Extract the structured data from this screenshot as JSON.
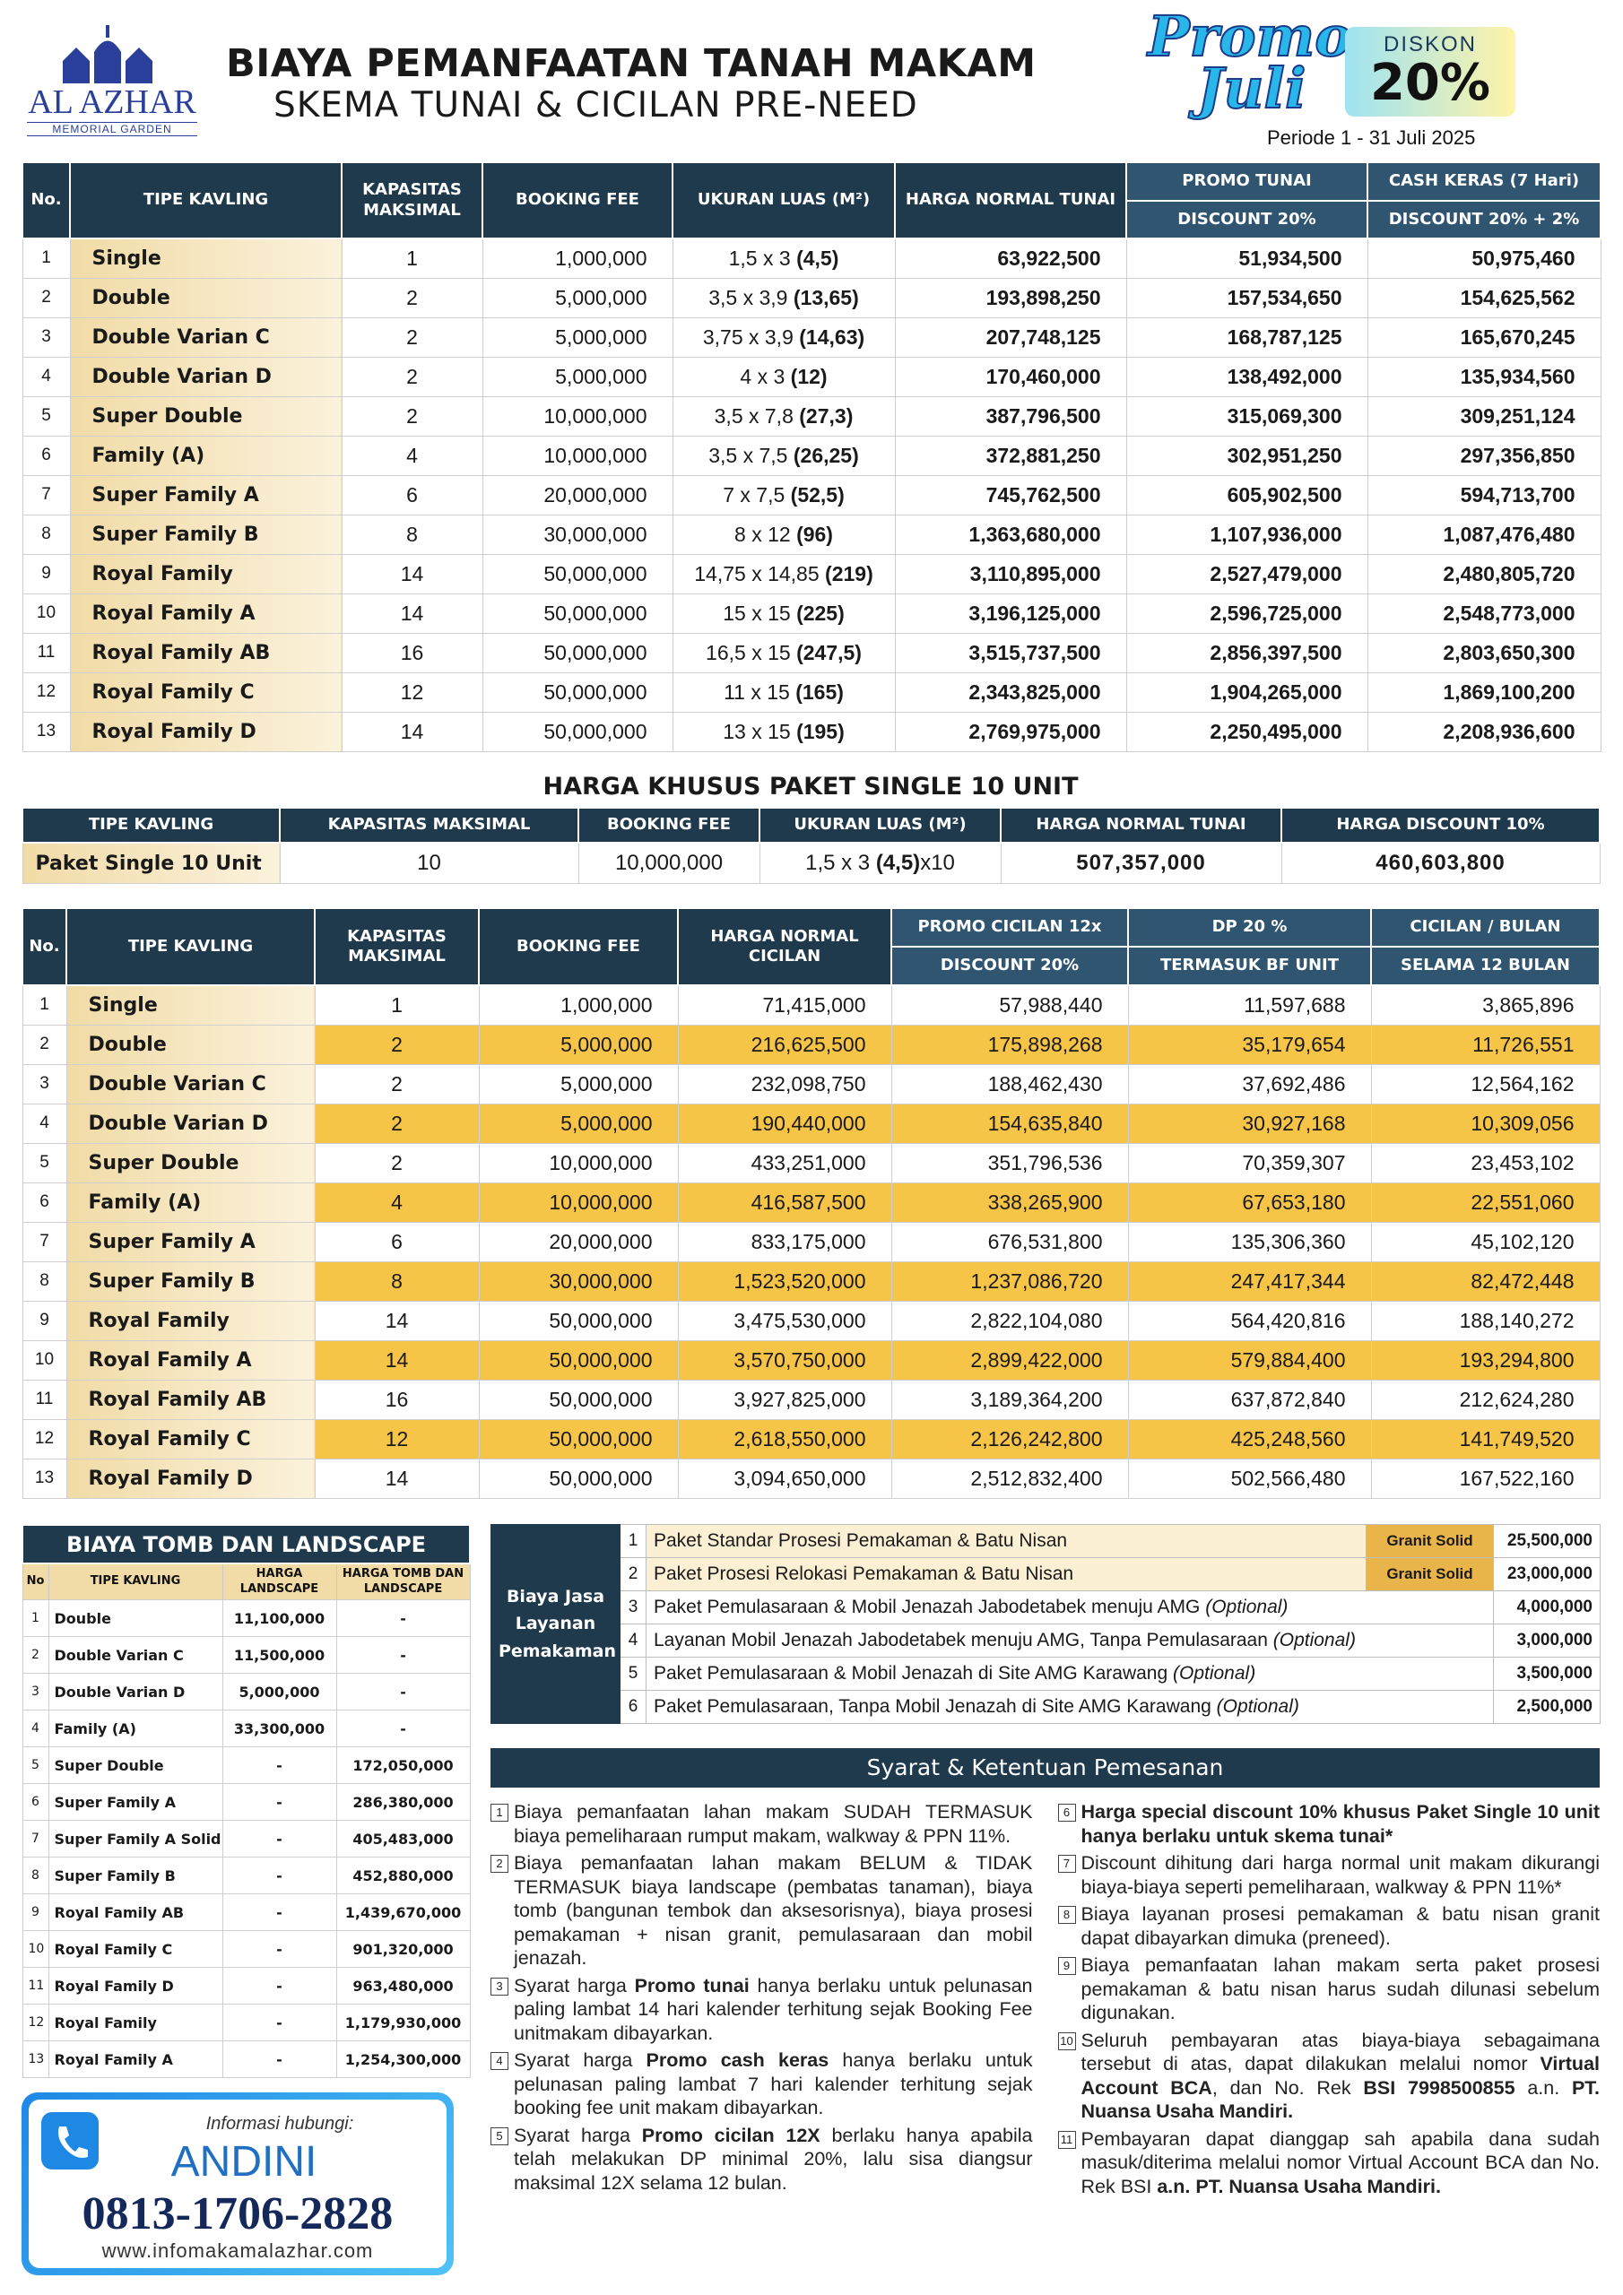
{
  "header": {
    "logo": "AL AZHAR",
    "logo_sub": "MEMORIAL GARDEN",
    "title": "BIAYA PEMANFAATAN TANAH MAKAM",
    "subtitle": "SKEMA TUNAI & CICILAN PRE-NEED",
    "promo_1": "Promo",
    "promo_2": "Juli",
    "discount_label": "DISKON",
    "discount": "20%",
    "period": "Periode 1 - 31 Juli 2025"
  },
  "cash_table": {
    "headers": [
      "No.",
      "TIPE KAVLING",
      "KAPASITAS MAKSIMAL",
      "BOOKING FEE",
      "UKURAN LUAS (M²)",
      "HARGA NORMAL TUNAI",
      "PROMO TUNAI",
      "CASH KERAS (7 Hari)"
    ],
    "subheaders": [
      "DISCOUNT 20%",
      "DISCOUNT 20% + 2%"
    ],
    "rows": [
      [
        "1",
        "Single",
        "1",
        "1,000,000",
        "1,5 x 3",
        "(4,5)",
        "63,922,500",
        "51,934,500",
        "50,975,460"
      ],
      [
        "2",
        "Double",
        "2",
        "5,000,000",
        "3,5 x 3,9",
        "(13,65)",
        "193,898,250",
        "157,534,650",
        "154,625,562"
      ],
      [
        "3",
        "Double Varian C",
        "2",
        "5,000,000",
        "3,75 x 3,9",
        "(14,63)",
        "207,748,125",
        "168,787,125",
        "165,670,245"
      ],
      [
        "4",
        "Double Varian D",
        "2",
        "5,000,000",
        "4 x 3",
        "(12)",
        "170,460,000",
        "138,492,000",
        "135,934,560"
      ],
      [
        "5",
        "Super Double",
        "2",
        "10,000,000",
        "3,5 x 7,8",
        "(27,3)",
        "387,796,500",
        "315,069,300",
        "309,251,124"
      ],
      [
        "6",
        "Family (A)",
        "4",
        "10,000,000",
        "3,5 x 7,5",
        "(26,25)",
        "372,881,250",
        "302,951,250",
        "297,356,850"
      ],
      [
        "7",
        "Super Family A",
        "6",
        "20,000,000",
        "7 x 7,5",
        "(52,5)",
        "745,762,500",
        "605,902,500",
        "594,713,700"
      ],
      [
        "8",
        "Super Family B",
        "8",
        "30,000,000",
        "8 x 12",
        "(96)",
        "1,363,680,000",
        "1,107,936,000",
        "1,087,476,480"
      ],
      [
        "9",
        "Royal Family",
        "14",
        "50,000,000",
        "14,75 x 14,85",
        "(219)",
        "3,110,895,000",
        "2,527,479,000",
        "2,480,805,720"
      ],
      [
        "10",
        "Royal Family A",
        "14",
        "50,000,000",
        "15 x 15",
        "(225)",
        "3,196,125,000",
        "2,596,725,000",
        "2,548,773,000"
      ],
      [
        "11",
        "Royal Family AB",
        "16",
        "50,000,000",
        "16,5 x 15",
        "(247,5)",
        "3,515,737,500",
        "2,856,397,500",
        "2,803,650,300"
      ],
      [
        "12",
        "Royal Family C",
        "12",
        "50,000,000",
        "11 x 15",
        "(165)",
        "2,343,825,000",
        "1,904,265,000",
        "1,869,100,200"
      ],
      [
        "13",
        "Royal Family D",
        "14",
        "50,000,000",
        "13 x 15",
        "(195)",
        "2,769,975,000",
        "2,250,495,000",
        "2,208,936,600"
      ]
    ]
  },
  "package_table": {
    "title": "HARGA KHUSUS PAKET SINGLE 10 UNIT",
    "headers": [
      "TIPE KAVLING",
      "KAPASITAS MAKSIMAL",
      "BOOKING FEE",
      "UKURAN LUAS (M²)",
      "HARGA NORMAL TUNAI",
      "HARGA DISCOUNT 10%"
    ],
    "row": [
      "Paket Single 10 Unit",
      "10",
      "10,000,000",
      "1,5 x  3",
      "(4,5)",
      "x10",
      "507,357,000",
      "460,603,800"
    ]
  },
  "installment_table": {
    "headers": [
      "No.",
      "TIPE KAVLING",
      "KAPASITAS MAKSIMAL",
      "BOOKING FEE",
      "HARGA NORMAL CICILAN",
      "PROMO CICILAN 12x",
      "DP 20 %",
      "CICILAN / BULAN"
    ],
    "subheaders": [
      "DISCOUNT 20%",
      "TERMASUK BF UNIT",
      "SELAMA 12 BULAN"
    ],
    "rows": [
      [
        "1",
        "Single",
        "1",
        "1,000,000",
        "71,415,000",
        "57,988,440",
        "11,597,688",
        "3,865,896"
      ],
      [
        "2",
        "Double",
        "2",
        "5,000,000",
        "216,625,500",
        "175,898,268",
        "35,179,654",
        "11,726,551"
      ],
      [
        "3",
        "Double Varian C",
        "2",
        "5,000,000",
        "232,098,750",
        "188,462,430",
        "37,692,486",
        "12,564,162"
      ],
      [
        "4",
        "Double Varian D",
        "2",
        "5,000,000",
        "190,440,000",
        "154,635,840",
        "30,927,168",
        "10,309,056"
      ],
      [
        "5",
        "Super Double",
        "2",
        "10,000,000",
        "433,251,000",
        "351,796,536",
        "70,359,307",
        "23,453,102"
      ],
      [
        "6",
        "Family (A)",
        "4",
        "10,000,000",
        "416,587,500",
        "338,265,900",
        "67,653,180",
        "22,551,060"
      ],
      [
        "7",
        "Super Family A",
        "6",
        "20,000,000",
        "833,175,000",
        "676,531,800",
        "135,306,360",
        "45,102,120"
      ],
      [
        "8",
        "Super Family B",
        "8",
        "30,000,000",
        "1,523,520,000",
        "1,237,086,720",
        "247,417,344",
        "82,472,448"
      ],
      [
        "9",
        "Royal Family",
        "14",
        "50,000,000",
        "3,475,530,000",
        "2,822,104,080",
        "564,420,816",
        "188,140,272"
      ],
      [
        "10",
        "Royal Family A",
        "14",
        "50,000,000",
        "3,570,750,000",
        "2,899,422,000",
        "579,884,400",
        "193,294,800"
      ],
      [
        "11",
        "Royal Family AB",
        "16",
        "50,000,000",
        "3,927,825,000",
        "3,189,364,200",
        "637,872,840",
        "212,624,280"
      ],
      [
        "12",
        "Royal Family C",
        "12",
        "50,000,000",
        "2,618,550,000",
        "2,126,242,800",
        "425,248,560",
        "141,749,520"
      ],
      [
        "13",
        "Royal Family D",
        "14",
        "50,000,000",
        "3,094,650,000",
        "2,512,832,400",
        "502,566,480",
        "167,522,160"
      ]
    ]
  },
  "tomb_table": {
    "title": "BIAYA TOMB DAN LANDSCAPE",
    "headers": [
      "No",
      "TIPE KAVLING",
      "HARGA LANDSCAPE",
      "HARGA TOMB DAN LANDSCAPE"
    ],
    "rows": [
      [
        "1",
        "Double",
        "11,100,000",
        "-"
      ],
      [
        "2",
        "Double Varian C",
        "11,500,000",
        "-"
      ],
      [
        "3",
        "Double Varian D",
        "5,000,000",
        "-"
      ],
      [
        "4",
        "Family (A)",
        "33,300,000",
        "-"
      ],
      [
        "5",
        "Super Double",
        "-",
        "172,050,000"
      ],
      [
        "6",
        "Super Family A",
        "-",
        "286,380,000"
      ],
      [
        "7",
        "Super Family A Solid",
        "-",
        "405,483,000"
      ],
      [
        "8",
        "Super Family B",
        "-",
        "452,880,000"
      ],
      [
        "9",
        "Royal Family AB",
        "-",
        "1,439,670,000"
      ],
      [
        "10",
        "Royal Family C",
        "-",
        "901,320,000"
      ],
      [
        "11",
        "Royal Family D",
        "-",
        "963,480,000"
      ],
      [
        "12",
        "Royal Family",
        "-",
        "1,179,930,000"
      ],
      [
        "13",
        "Royal Family A",
        "-",
        "1,254,300,000"
      ]
    ]
  },
  "services": {
    "label": "Biaya Jasa Layanan Pemakaman",
    "rows": [
      {
        "no": "1",
        "text": "Paket Standar Prosesi Pemakaman & Batu Nisan",
        "grade": "Granit Solid",
        "price": "25,500,000"
      },
      {
        "no": "2",
        "text": "Paket Prosesi Relokasi Pemakaman & Batu Nisan",
        "grade": "Granit Solid",
        "price": "23,000,000"
      },
      {
        "no": "3",
        "text": "Paket Pemulasaraan & Mobil Jenazah Jabodetabek menuju AMG",
        "note": "(Optional)",
        "price": "4,000,000"
      },
      {
        "no": "4",
        "text": "Layanan Mobil Jenazah  Jabodetabek menuju AMG, Tanpa Pemulasaraan",
        "note": "(Optional)",
        "price": "3,000,000"
      },
      {
        "no": "5",
        "text": "Paket Pemulasaraan & Mobil Jenazah di Site AMG Karawang",
        "note": "(Optional)",
        "price": "3,500,000"
      },
      {
        "no": "6",
        "text": "Paket Pemulasaraan, Tanpa Mobil Jenazah di Site AMG Karawang",
        "note": "(Optional)",
        "price": "2,500,000"
      }
    ]
  },
  "terms": {
    "title": "Syarat & Ketentuan Pemesanan",
    "items": [
      {
        "no": "1",
        "parts": [
          {
            "text": "Biaya pemanfaatan lahan makam SUDAH TERMASUK biaya pemeliharaan rumput makam, walkway & PPN 11%."
          }
        ]
      },
      {
        "no": "2",
        "parts": [
          {
            "text": "Biaya pemanfaatan lahan makam BELUM & TIDAK TERMASUK biaya landscape (pembatas tanaman), biaya tomb (bangunan tembok dan aksesorisnya), biaya prosesi pemakaman + nisan granit, pemulasaraan dan mobil jenazah."
          }
        ]
      },
      {
        "no": "3",
        "parts": [
          {
            "text": "Syarat harga "
          },
          {
            "text": "Promo tunai",
            "bold": true
          },
          {
            "text": " hanya berlaku untuk pelunasan paling lambat 14 hari kalender terhitung sejak Booking Fee unitmakam dibayarkan."
          }
        ]
      },
      {
        "no": "4",
        "parts": [
          {
            "text": "Syarat harga "
          },
          {
            "text": "Promo cash keras",
            "bold": true
          },
          {
            "text": " hanya berlaku untuk pelunasan paling lambat 7 hari kalender terhitung sejak booking fee unit makam dibayarkan."
          }
        ]
      },
      {
        "no": "5",
        "parts": [
          {
            "text": "Syarat harga "
          },
          {
            "text": "Promo cicilan 12X",
            "bold": true
          },
          {
            "text": " berlaku hanya apabila telah melakukan DP minimal 20%, lalu sisa diangsur maksimal 12X selama 12 bulan."
          }
        ]
      },
      {
        "no": "6",
        "parts": [
          {
            "text": "Harga special discount 10% khusus Paket Single 10 unit hanya berlaku untuk skema tunai*",
            "bold": true
          }
        ]
      },
      {
        "no": "7",
        "parts": [
          {
            "text": "Discount dihitung dari harga normal unit makam dikurangi biaya-biaya seperti pemeliharaan, walkway & PPN 11%*"
          }
        ]
      },
      {
        "no": "8",
        "parts": [
          {
            "text": "Biaya layanan prosesi pemakaman & batu nisan granit dapat dibayarkan dimuka (preneed)."
          }
        ]
      },
      {
        "no": "9",
        "parts": [
          {
            "text": "Biaya pemanfaatan lahan makam serta paket prosesi pemakaman & batu nisan harus sudah dilunasi sebelum digunakan."
          }
        ]
      },
      {
        "no": "10",
        "parts": [
          {
            "text": "Seluruh pembayaran atas biaya-biaya sebagaimana tersebut di atas, dapat dilakukan melalui nomor "
          },
          {
            "text": "Virtual Account BCA",
            "bold": true
          },
          {
            "text": ", dan No. Rek "
          },
          {
            "text": "BSI 7998500855",
            "bold": true
          },
          {
            "text": " a.n. "
          },
          {
            "text": "PT. Nuansa Usaha Mandiri.",
            "bold": true
          }
        ]
      },
      {
        "no": "11",
        "parts": [
          {
            "text": "Pembayaran dapat dianggap sah apabila dana sudah masuk/diterima melalui nomor Virtual Account BCA dan No. Rek BSI "
          },
          {
            "text": "a.n. PT. Nuansa Usaha Mandiri.",
            "bold": true
          }
        ]
      }
    ]
  },
  "contact": {
    "label": "Informasi hubungi:",
    "name": "ANDINI",
    "phone": "0813-1706-2828",
    "url": "www.infomakamalazhar.com"
  }
}
